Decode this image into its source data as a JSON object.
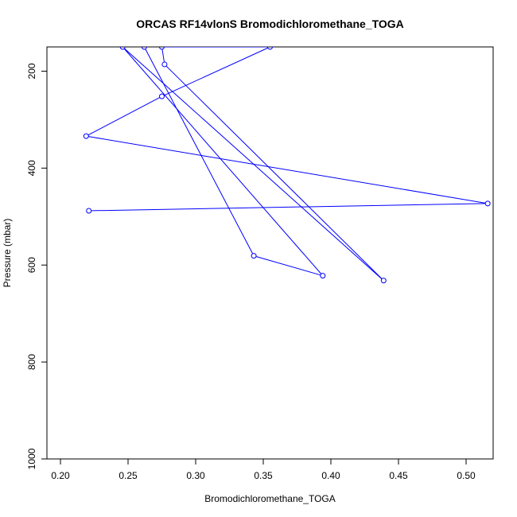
{
  "chart_data": {
    "type": "line",
    "title": "ORCAS RF14vlonS Bromodichloromethane_TOGA",
    "xlabel": "Bromodichloromethane_TOGA",
    "ylabel": "Pressure (mbar)",
    "xlim": [
      0.19,
      0.52
    ],
    "ylim": [
      1000,
      150
    ],
    "y_reversed": true,
    "grid": false,
    "x_ticks": [
      0.2,
      0.25,
      0.3,
      0.35,
      0.4,
      0.45,
      0.5
    ],
    "x_tick_labels": [
      "0.20",
      "0.25",
      "0.30",
      "0.35",
      "0.40",
      "0.45",
      "0.50"
    ],
    "y_ticks": [
      200,
      400,
      600,
      800,
      1000
    ],
    "y_tick_labels": [
      "200",
      "400",
      "600",
      "800",
      "1000"
    ],
    "series_color": "#0000ff",
    "marker": "open-circle",
    "points": [
      {
        "x": 0.221,
        "y": 488
      },
      {
        "x": 0.516,
        "y": 473
      },
      {
        "x": 0.219,
        "y": 334
      },
      {
        "x": 0.275,
        "y": 252
      },
      {
        "x": 0.355,
        "y": 150
      },
      {
        "x": 0.275,
        "y": 150
      },
      {
        "x": 0.277,
        "y": 186
      },
      {
        "x": 0.439,
        "y": 632
      },
      {
        "x": 0.246,
        "y": 150
      },
      {
        "x": 0.394,
        "y": 622
      },
      {
        "x": 0.343,
        "y": 581
      },
      {
        "x": 0.262,
        "y": 150
      }
    ]
  }
}
